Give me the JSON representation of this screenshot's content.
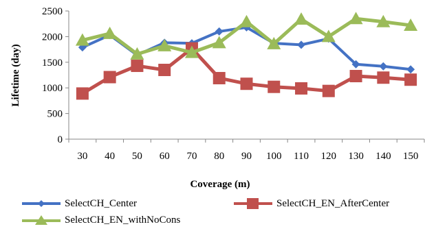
{
  "chart_data": {
    "type": "line",
    "xlabel": "Coverage (m)",
    "ylabel": "Lifetime (day)",
    "categories": [
      "30",
      "40",
      "50",
      "60",
      "70",
      "80",
      "90",
      "100",
      "110",
      "120",
      "130",
      "140",
      "150"
    ],
    "ylim": [
      0,
      2500
    ],
    "yticks": [
      "0",
      "500",
      "1000",
      "1500",
      "2000",
      "2500"
    ],
    "grid": false,
    "legend_position": "bottom",
    "series": [
      {
        "name": "SelectCH_Center",
        "color": "#4472C4",
        "marker": "diamond",
        "values": [
          1790,
          2030,
          1640,
          1880,
          1870,
          2100,
          2180,
          1870,
          1840,
          1960,
          1460,
          1420,
          1360
        ]
      },
      {
        "name": "SelectCH_EN_AfterCenter",
        "color": "#C0504D",
        "marker": "square",
        "values": [
          890,
          1210,
          1430,
          1350,
          1770,
          1190,
          1080,
          1020,
          990,
          940,
          1230,
          1200,
          1160
        ]
      },
      {
        "name": "SelectCH_EN_withNoCons",
        "color": "#9BBB59",
        "marker": "triangle",
        "values": [
          1930,
          2060,
          1660,
          1820,
          1690,
          1880,
          2290,
          1860,
          2340,
          2000,
          2350,
          2290,
          2220
        ]
      }
    ]
  }
}
